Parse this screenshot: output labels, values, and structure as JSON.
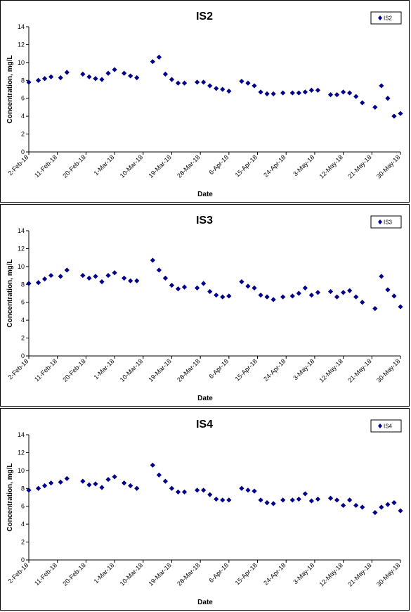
{
  "chart_data": [
    {
      "type": "scatter",
      "title": "IS2",
      "xlabel": "Date",
      "ylabel": "Concentration, mg/L",
      "ylim": [
        0,
        14
      ],
      "yticks": [
        0,
        2,
        4,
        6,
        8,
        10,
        12,
        14
      ],
      "xlim": [
        "2-Feb-18",
        "30-May-18"
      ],
      "xticks": [
        "2-Feb-18",
        "11-Feb-18",
        "20-Feb-18",
        "1-Mar-18",
        "10-Mar-18",
        "19-Mar-18",
        "28-Mar-18",
        "6-Apr-18",
        "15-Apr-18",
        "24-Apr-18",
        "3-May-18",
        "12-May-18",
        "21-May-18",
        "30-May-18"
      ],
      "legend": "top-right",
      "color": "#00008B",
      "series": [
        {
          "name": "IS2",
          "points": [
            [
              "2-Feb-18",
              7.8
            ],
            [
              "5-Feb-18",
              8.0
            ],
            [
              "7-Feb-18",
              8.2
            ],
            [
              "9-Feb-18",
              8.4
            ],
            [
              "12-Feb-18",
              8.3
            ],
            [
              "14-Feb-18",
              8.9
            ],
            [
              "19-Feb-18",
              8.7
            ],
            [
              "21-Feb-18",
              8.4
            ],
            [
              "23-Feb-18",
              8.2
            ],
            [
              "25-Feb-18",
              8.1
            ],
            [
              "27-Feb-18",
              8.8
            ],
            [
              "1-Mar-18",
              9.2
            ],
            [
              "4-Mar-18",
              8.8
            ],
            [
              "6-Mar-18",
              8.5
            ],
            [
              "8-Mar-18",
              8.3
            ],
            [
              "13-Mar-18",
              10.1
            ],
            [
              "15-Mar-18",
              10.6
            ],
            [
              "17-Mar-18",
              8.7
            ],
            [
              "19-Mar-18",
              8.1
            ],
            [
              "21-Mar-18",
              7.7
            ],
            [
              "23-Mar-18",
              7.7
            ],
            [
              "27-Mar-18",
              7.8
            ],
            [
              "29-Mar-18",
              7.8
            ],
            [
              "31-Mar-18",
              7.4
            ],
            [
              "2-Apr-18",
              7.1
            ],
            [
              "4-Apr-18",
              7.0
            ],
            [
              "6-Apr-18",
              6.8
            ],
            [
              "10-Apr-18",
              7.9
            ],
            [
              "12-Apr-18",
              7.7
            ],
            [
              "14-Apr-18",
              7.4
            ],
            [
              "16-Apr-18",
              6.7
            ],
            [
              "18-Apr-18",
              6.5
            ],
            [
              "20-Apr-18",
              6.5
            ],
            [
              "23-Apr-18",
              6.6
            ],
            [
              "26-Apr-18",
              6.6
            ],
            [
              "28-Apr-18",
              6.6
            ],
            [
              "30-Apr-18",
              6.7
            ],
            [
              "2-May-18",
              6.9
            ],
            [
              "4-May-18",
              6.9
            ],
            [
              "8-May-18",
              6.4
            ],
            [
              "10-May-18",
              6.4
            ],
            [
              "12-May-18",
              6.7
            ],
            [
              "14-May-18",
              6.6
            ],
            [
              "16-May-18",
              6.2
            ],
            [
              "18-May-18",
              5.5
            ],
            [
              "22-May-18",
              5.0
            ],
            [
              "24-May-18",
              7.4
            ],
            [
              "26-May-18",
              6.0
            ],
            [
              "28-May-18",
              4.0
            ],
            [
              "30-May-18",
              4.3
            ]
          ]
        }
      ]
    },
    {
      "type": "scatter",
      "title": "IS3",
      "xlabel": "Date",
      "ylabel": "Concentration, mg/L",
      "ylim": [
        0,
        14
      ],
      "yticks": [
        0,
        2,
        4,
        6,
        8,
        10,
        12,
        14
      ],
      "xlim": [
        "2-Feb-18",
        "30-May-18"
      ],
      "xticks": [
        "2-Feb-18",
        "11-Feb-18",
        "20-Feb-18",
        "1-Mar-18",
        "10-Mar-18",
        "19-Mar-18",
        "28-Mar-18",
        "6-Apr-18",
        "15-Apr-18",
        "24-Apr-18",
        "3-May-18",
        "12-May-18",
        "21-May-18",
        "30-May-18"
      ],
      "legend": "top-right",
      "color": "#00008B",
      "series": [
        {
          "name": "IS3",
          "points": [
            [
              "2-Feb-18",
              8.1
            ],
            [
              "5-Feb-18",
              8.2
            ],
            [
              "7-Feb-18",
              8.6
            ],
            [
              "9-Feb-18",
              9.0
            ],
            [
              "12-Feb-18",
              8.9
            ],
            [
              "14-Feb-18",
              9.6
            ],
            [
              "19-Feb-18",
              9.0
            ],
            [
              "21-Feb-18",
              8.7
            ],
            [
              "23-Feb-18",
              8.9
            ],
            [
              "25-Feb-18",
              8.3
            ],
            [
              "27-Feb-18",
              9.0
            ],
            [
              "1-Mar-18",
              9.3
            ],
            [
              "4-Mar-18",
              8.7
            ],
            [
              "6-Mar-18",
              8.4
            ],
            [
              "8-Mar-18",
              8.4
            ],
            [
              "13-Mar-18",
              10.7
            ],
            [
              "15-Mar-18",
              9.6
            ],
            [
              "17-Mar-18",
              8.7
            ],
            [
              "19-Mar-18",
              7.9
            ],
            [
              "21-Mar-18",
              7.5
            ],
            [
              "23-Mar-18",
              7.7
            ],
            [
              "27-Mar-18",
              7.6
            ],
            [
              "29-Mar-18",
              8.1
            ],
            [
              "31-Mar-18",
              7.2
            ],
            [
              "2-Apr-18",
              6.8
            ],
            [
              "4-Apr-18",
              6.6
            ],
            [
              "6-Apr-18",
              6.7
            ],
            [
              "10-Apr-18",
              8.3
            ],
            [
              "12-Apr-18",
              7.8
            ],
            [
              "14-Apr-18",
              7.6
            ],
            [
              "16-Apr-18",
              6.8
            ],
            [
              "18-Apr-18",
              6.6
            ],
            [
              "20-Apr-18",
              6.3
            ],
            [
              "23-Apr-18",
              6.6
            ],
            [
              "26-Apr-18",
              6.7
            ],
            [
              "28-Apr-18",
              7.0
            ],
            [
              "30-Apr-18",
              7.6
            ],
            [
              "2-May-18",
              6.8
            ],
            [
              "4-May-18",
              7.1
            ],
            [
              "8-May-18",
              7.2
            ],
            [
              "10-May-18",
              6.6
            ],
            [
              "12-May-18",
              7.1
            ],
            [
              "14-May-18",
              7.3
            ],
            [
              "16-May-18",
              6.6
            ],
            [
              "18-May-18",
              6.0
            ],
            [
              "22-May-18",
              5.3
            ],
            [
              "24-May-18",
              8.9
            ],
            [
              "26-May-18",
              7.4
            ],
            [
              "28-May-18",
              6.7
            ],
            [
              "30-May-18",
              5.5
            ]
          ]
        }
      ]
    },
    {
      "type": "scatter",
      "title": "IS4",
      "xlabel": "Date",
      "ylabel": "Concentration, mg/L",
      "ylim": [
        0,
        14
      ],
      "yticks": [
        0,
        2,
        4,
        6,
        8,
        10,
        12,
        14
      ],
      "xlim": [
        "2-Feb-18",
        "30-May-18"
      ],
      "xticks": [
        "2-Feb-18",
        "11-Feb-18",
        "20-Feb-18",
        "1-Mar-18",
        "10-Mar-18",
        "19-Mar-18",
        "28-Mar-18",
        "6-Apr-18",
        "15-Apr-18",
        "24-Apr-18",
        "3-May-18",
        "12-May-18",
        "21-May-18",
        "30-May-18"
      ],
      "legend": "top-right",
      "color": "#00008B",
      "series": [
        {
          "name": "IS4",
          "points": [
            [
              "2-Feb-18",
              7.8
            ],
            [
              "5-Feb-18",
              8.0
            ],
            [
              "7-Feb-18",
              8.3
            ],
            [
              "9-Feb-18",
              8.6
            ],
            [
              "12-Feb-18",
              8.7
            ],
            [
              "14-Feb-18",
              9.1
            ],
            [
              "19-Feb-18",
              8.8
            ],
            [
              "21-Feb-18",
              8.4
            ],
            [
              "23-Feb-18",
              8.5
            ],
            [
              "25-Feb-18",
              8.1
            ],
            [
              "27-Feb-18",
              9.0
            ],
            [
              "1-Mar-18",
              9.3
            ],
            [
              "4-Mar-18",
              8.6
            ],
            [
              "6-Mar-18",
              8.3
            ],
            [
              "8-Mar-18",
              8.0
            ],
            [
              "13-Mar-18",
              10.6
            ],
            [
              "15-Mar-18",
              9.5
            ],
            [
              "17-Mar-18",
              8.8
            ],
            [
              "19-Mar-18",
              8.0
            ],
            [
              "21-Mar-18",
              7.6
            ],
            [
              "23-Mar-18",
              7.6
            ],
            [
              "27-Mar-18",
              7.8
            ],
            [
              "29-Mar-18",
              7.8
            ],
            [
              "31-Mar-18",
              7.3
            ],
            [
              "2-Apr-18",
              6.8
            ],
            [
              "4-Apr-18",
              6.7
            ],
            [
              "6-Apr-18",
              6.7
            ],
            [
              "10-Apr-18",
              8.0
            ],
            [
              "12-Apr-18",
              7.8
            ],
            [
              "14-Apr-18",
              7.7
            ],
            [
              "16-Apr-18",
              6.7
            ],
            [
              "18-Apr-18",
              6.4
            ],
            [
              "20-Apr-18",
              6.3
            ],
            [
              "23-Apr-18",
              6.7
            ],
            [
              "26-Apr-18",
              6.7
            ],
            [
              "28-Apr-18",
              6.8
            ],
            [
              "30-Apr-18",
              7.4
            ],
            [
              "2-May-18",
              6.6
            ],
            [
              "4-May-18",
              6.8
            ],
            [
              "8-May-18",
              6.9
            ],
            [
              "10-May-18",
              6.7
            ],
            [
              "12-May-18",
              6.1
            ],
            [
              "14-May-18",
              6.7
            ],
            [
              "16-May-18",
              6.1
            ],
            [
              "18-May-18",
              5.9
            ],
            [
              "22-May-18",
              5.3
            ],
            [
              "24-May-18",
              5.9
            ],
            [
              "26-May-18",
              6.2
            ],
            [
              "28-May-18",
              6.4
            ],
            [
              "30-May-18",
              5.5
            ]
          ]
        }
      ]
    }
  ]
}
